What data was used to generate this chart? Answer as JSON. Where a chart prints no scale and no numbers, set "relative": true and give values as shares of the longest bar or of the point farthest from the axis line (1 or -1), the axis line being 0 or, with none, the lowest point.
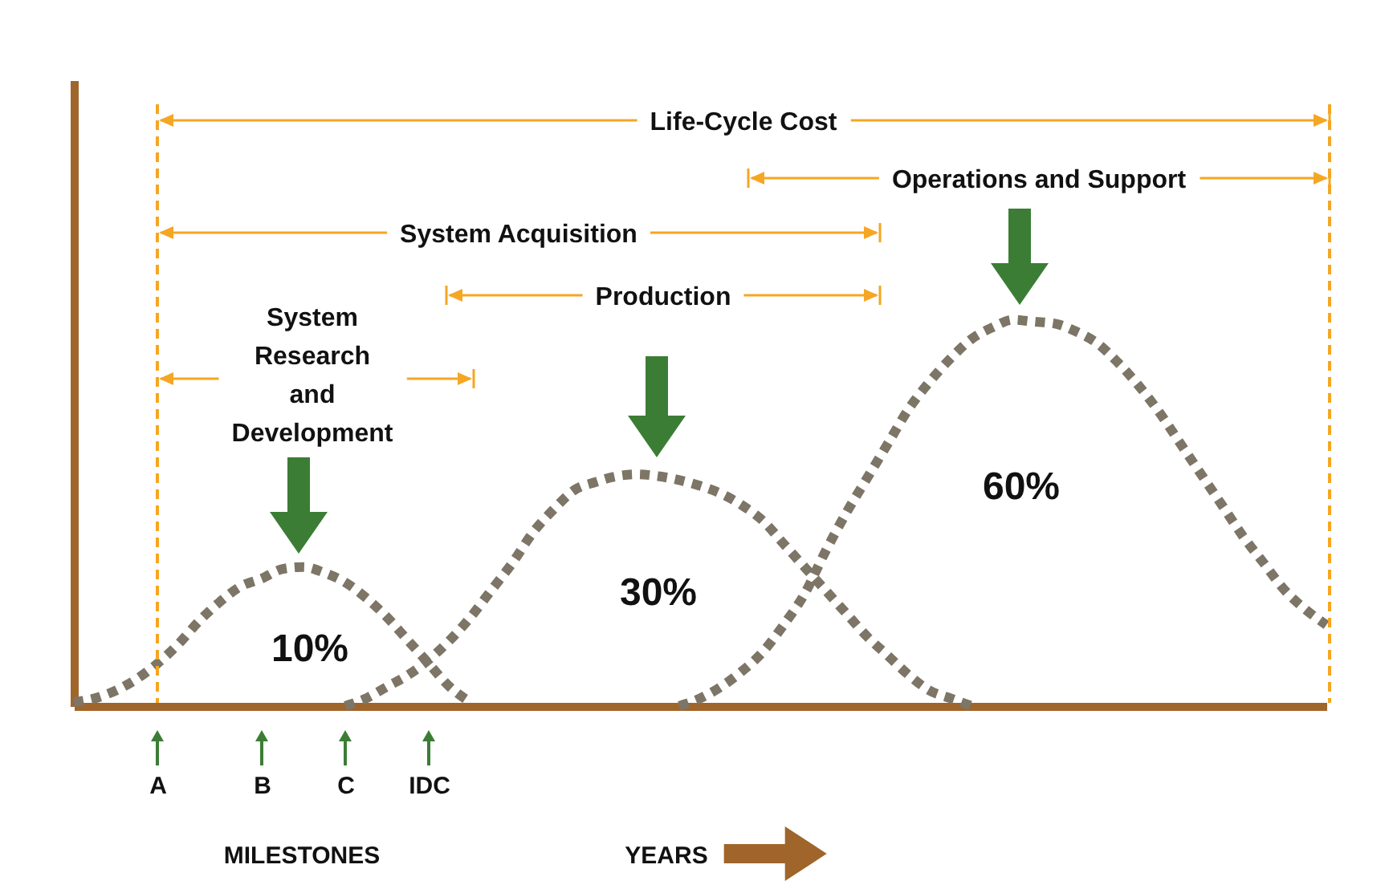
{
  "chart_data": {
    "type": "line",
    "relative": true,
    "line_style": "dotted",
    "marker": "none",
    "grid": false,
    "legend": false,
    "xlabel": "YEARS",
    "categories": [
      null,
      null,
      null,
      null,
      "A",
      null,
      null,
      null,
      null,
      "B",
      null,
      null,
      null,
      "C",
      null,
      null,
      null,
      "IDC",
      null,
      null,
      null,
      null,
      null,
      null,
      null,
      null,
      null,
      null,
      null,
      null,
      null,
      null,
      null,
      null,
      null,
      null,
      null,
      null,
      null,
      null,
      null,
      null,
      null,
      null,
      null,
      null,
      null,
      null,
      null,
      null,
      null,
      null,
      null,
      null,
      null,
      null,
      null,
      null,
      null,
      null,
      null
    ],
    "series": [
      {
        "color": "#7d7566",
        "values": [
          0.01,
          0.02,
          0.04,
          0.07,
          0.11,
          0.16,
          0.22,
          0.27,
          0.31,
          0.33,
          0.355,
          0.36,
          0.345,
          0.32,
          0.28,
          0.23,
          0.17,
          0.11,
          0.05,
          0.01,
          null,
          null,
          null,
          null,
          null,
          null,
          null,
          null,
          null,
          null,
          null,
          null,
          null,
          null,
          null,
          null,
          null,
          null,
          null,
          null,
          null,
          null,
          null,
          null,
          null,
          null,
          null,
          null,
          null,
          null,
          null,
          null,
          null,
          null,
          null,
          null,
          null,
          null,
          null,
          null,
          null
        ]
      },
      {
        "color": "#7d7566",
        "values": [
          null,
          null,
          null,
          null,
          null,
          null,
          null,
          null,
          null,
          null,
          null,
          null,
          null,
          0,
          0.02,
          0.05,
          0.08,
          0.12,
          0.17,
          0.23,
          0.3,
          0.37,
          0.45,
          0.51,
          0.56,
          0.58,
          0.595,
          0.6,
          0.595,
          0.585,
          0.57,
          0.55,
          0.52,
          0.48,
          0.42,
          0.36,
          0.3,
          0.24,
          0.18,
          0.13,
          0.08,
          0.04,
          0.02,
          0,
          null,
          null,
          null,
          null,
          null,
          null,
          null,
          null,
          null,
          null,
          null,
          null,
          null,
          null,
          null,
          null,
          null
        ]
      },
      {
        "color": "#7d7566",
        "values": [
          null,
          null,
          null,
          null,
          null,
          null,
          null,
          null,
          null,
          null,
          null,
          null,
          null,
          null,
          null,
          null,
          null,
          null,
          null,
          null,
          null,
          null,
          null,
          null,
          null,
          null,
          null,
          null,
          null,
          0,
          0.02,
          0.05,
          0.09,
          0.14,
          0.21,
          0.29,
          0.4,
          0.5,
          0.59,
          0.68,
          0.77,
          0.84,
          0.9,
          0.95,
          0.98,
          1,
          0.995,
          0.99,
          0.97,
          0.94,
          0.89,
          0.83,
          0.76,
          0.68,
          0.6,
          0.52,
          0.44,
          0.37,
          0.3,
          0.25,
          0.21
        ]
      }
    ],
    "annotations": [
      "Life-Cycle Cost",
      "Operations and Support",
      "System Acquisition",
      "Production",
      "System Research and Development",
      "MILESTONES",
      "10%",
      "30%",
      "60%"
    ]
  }
}
